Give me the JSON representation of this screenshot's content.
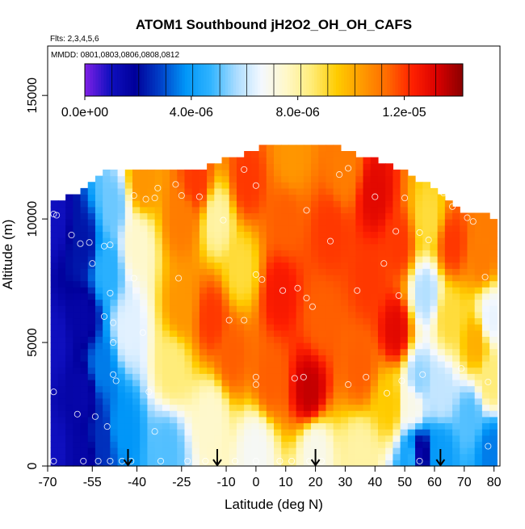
{
  "chart_data": {
    "type": "heatmap",
    "title": "ATOM1 Southbound jH2O2_OH_OH_CAFS",
    "flights_label": "Flts: 2,3,4,5,6",
    "dates_label": "MMDD: 0801,0803,0806,0808,0812",
    "xlabel": "Latitude (deg N)",
    "ylabel": "Altitude (m)",
    "xlim": [
      -70,
      82
    ],
    "ylim": [
      0,
      17000
    ],
    "x_ticks": [
      -70,
      -55,
      -40,
      -25,
      -10,
      0,
      10,
      20,
      30,
      40,
      50,
      60,
      70,
      80
    ],
    "y_ticks": [
      0,
      5000,
      10000,
      15000
    ],
    "colorbar": {
      "min": 0,
      "max": 1.42e-05,
      "tick_values": [
        0,
        4e-06,
        8e-06,
        1.2e-05
      ],
      "tick_labels": [
        "0.0e+00",
        "4.0e-06",
        "8.0e-06",
        "1.2e-05"
      ],
      "colors": [
        "#8020e6",
        "#1010c0",
        "#00009a",
        "#0040c8",
        "#0096f8",
        "#30b4ff",
        "#aadcff",
        "#f4f8ff",
        "#fff8c8",
        "#ffec78",
        "#ffcc00",
        "#ff9a00",
        "#ff6a00",
        "#ff2000",
        "#d80000",
        "#8a0000"
      ]
    },
    "arrows_latitude": [
      -43,
      -13,
      20,
      62
    ],
    "column_ceilings": [
      {
        "lat": -68,
        "alt": 10500
      },
      {
        "lat": -60,
        "alt": 11000
      },
      {
        "lat": -50,
        "alt": 11900
      },
      {
        "lat": -35,
        "alt": 11900
      },
      {
        "lat": -20,
        "alt": 11900
      },
      {
        "lat": -5,
        "alt": 12500
      },
      {
        "lat": 5,
        "alt": 13000
      },
      {
        "lat": 15,
        "alt": 13000
      },
      {
        "lat": 26,
        "alt": 13000
      },
      {
        "lat": 30,
        "alt": 12600
      },
      {
        "lat": 40,
        "alt": 12300
      },
      {
        "lat": 50,
        "alt": 11800
      },
      {
        "lat": 58,
        "alt": 11200
      },
      {
        "lat": 65,
        "alt": 10600
      },
      {
        "lat": 70,
        "alt": 10200
      },
      {
        "lat": 78,
        "alt": 10000
      }
    ],
    "field_anchors": [
      {
        "lat": -68,
        "alt": 500,
        "value": 1e-06
      },
      {
        "lat": -68,
        "alt": 5000,
        "value": 1e-06
      },
      {
        "lat": -68,
        "alt": 10000,
        "value": 1e-06
      },
      {
        "lat": -58,
        "alt": 500,
        "value": 1.6e-06
      },
      {
        "lat": -58,
        "alt": 3000,
        "value": 1.5e-06
      },
      {
        "lat": -58,
        "alt": 6000,
        "value": 1.6e-06
      },
      {
        "lat": -58,
        "alt": 9000,
        "value": 2.2e-06
      },
      {
        "lat": -52,
        "alt": 1000,
        "value": 2.6e-06
      },
      {
        "lat": -52,
        "alt": 4000,
        "value": 3.5e-06
      },
      {
        "lat": -50,
        "alt": 8000,
        "value": 4.6e-06
      },
      {
        "lat": -48,
        "alt": 10500,
        "value": 5.2e-06
      },
      {
        "lat": -45,
        "alt": 1500,
        "value": 3.8e-06
      },
      {
        "lat": -43,
        "alt": 5500,
        "value": 6.4e-06
      },
      {
        "lat": -40,
        "alt": 9000,
        "value": 7.5e-06
      },
      {
        "lat": -38,
        "alt": 11500,
        "value": 1.05e-05
      },
      {
        "lat": -30,
        "alt": 700,
        "value": 5e-06
      },
      {
        "lat": -28,
        "alt": 4000,
        "value": 8.5e-06
      },
      {
        "lat": -25,
        "alt": 6500,
        "value": 1.05e-05
      },
      {
        "lat": -25,
        "alt": 10000,
        "value": 1.1e-05
      },
      {
        "lat": -20,
        "alt": 11500,
        "value": 1.2e-05
      },
      {
        "lat": -15,
        "alt": 2000,
        "value": 7.5e-06
      },
      {
        "lat": -15,
        "alt": 6000,
        "value": 1.2e-05
      },
      {
        "lat": -13,
        "alt": 10000,
        "value": 8e-06
      },
      {
        "lat": -8,
        "alt": 4500,
        "value": 1.15e-05
      },
      {
        "lat": -5,
        "alt": 8000,
        "value": 9e-06
      },
      {
        "lat": -3,
        "alt": 11500,
        "value": 1.2e-05
      },
      {
        "lat": 0,
        "alt": 700,
        "value": 6.8e-06
      },
      {
        "lat": 5,
        "alt": 3500,
        "value": 1.15e-05
      },
      {
        "lat": 8,
        "alt": 7000,
        "value": 1.25e-05
      },
      {
        "lat": 10,
        "alt": 10000,
        "value": 1.15e-05
      },
      {
        "lat": 12,
        "alt": 12500,
        "value": 1.05e-05
      },
      {
        "lat": 18,
        "alt": 3000,
        "value": 1.35e-05
      },
      {
        "lat": 20,
        "alt": 700,
        "value": 7e-06
      },
      {
        "lat": 22,
        "alt": 6000,
        "value": 1.15e-05
      },
      {
        "lat": 25,
        "alt": 9500,
        "value": 1.2e-05
      },
      {
        "lat": 30,
        "alt": 12000,
        "value": 1.1e-05
      },
      {
        "lat": 35,
        "alt": 500,
        "value": 8e-06
      },
      {
        "lat": 35,
        "alt": 4000,
        "value": 1.15e-05
      },
      {
        "lat": 38,
        "alt": 7500,
        "value": 1.2e-05
      },
      {
        "lat": 40,
        "alt": 11000,
        "value": 1.3e-05
      },
      {
        "lat": 45,
        "alt": 2500,
        "value": 9.5e-06
      },
      {
        "lat": 47,
        "alt": 5500,
        "value": 1.3e-05
      },
      {
        "lat": 48,
        "alt": 9000,
        "value": 1.2e-05
      },
      {
        "lat": 53,
        "alt": 300,
        "value": 4.5e-06
      },
      {
        "lat": 53,
        "alt": 2500,
        "value": 7e-06
      },
      {
        "lat": 55,
        "alt": 500,
        "value": 1.5e-06
      },
      {
        "lat": 55,
        "alt": 3500,
        "value": 5.5e-06
      },
      {
        "lat": 57,
        "alt": 7000,
        "value": 5.8e-06
      },
      {
        "lat": 58,
        "alt": 10000,
        "value": 9e-06
      },
      {
        "lat": 62,
        "alt": 500,
        "value": 4e-06
      },
      {
        "lat": 62,
        "alt": 3000,
        "value": 6e-06
      },
      {
        "lat": 65,
        "alt": 6000,
        "value": 9e-06
      },
      {
        "lat": 66,
        "alt": 9000,
        "value": 1.2e-05
      },
      {
        "lat": 72,
        "alt": 2000,
        "value": 5e-06
      },
      {
        "lat": 74,
        "alt": 5000,
        "value": 1e-05
      },
      {
        "lat": 76,
        "alt": 8500,
        "value": 1.1e-05
      },
      {
        "lat": 79,
        "alt": 700,
        "value": 3.5e-06
      },
      {
        "lat": 79,
        "alt": 3500,
        "value": 8.5e-06
      },
      {
        "lat": 79,
        "alt": 6000,
        "value": 6.5e-06
      },
      {
        "lat": 79,
        "alt": 9500,
        "value": 1.1e-05
      }
    ],
    "sample_points": [
      {
        "lat": -68,
        "alt": 10200
      },
      {
        "lat": -67,
        "alt": 10150
      },
      {
        "lat": -68,
        "alt": 3000
      },
      {
        "lat": -68,
        "alt": 200
      },
      {
        "lat": -62,
        "alt": 9350
      },
      {
        "lat": -59,
        "alt": 9000
      },
      {
        "lat": -60,
        "alt": 2100
      },
      {
        "lat": -58,
        "alt": 200
      },
      {
        "lat": -56,
        "alt": 9050
      },
      {
        "lat": -55,
        "alt": 8200
      },
      {
        "lat": -54,
        "alt": 2000
      },
      {
        "lat": -53,
        "alt": 200
      },
      {
        "lat": -51,
        "alt": 8900
      },
      {
        "lat": -49,
        "alt": 8950
      },
      {
        "lat": -51,
        "alt": 6050
      },
      {
        "lat": -48,
        "alt": 5800
      },
      {
        "lat": -48,
        "alt": 5000
      },
      {
        "lat": -48,
        "alt": 3700
      },
      {
        "lat": -47,
        "alt": 3450
      },
      {
        "lat": -49,
        "alt": 7000
      },
      {
        "lat": -50,
        "alt": 1600
      },
      {
        "lat": -49,
        "alt": 200
      },
      {
        "lat": -45,
        "alt": 200
      },
      {
        "lat": -42,
        "alt": 200
      },
      {
        "lat": -41,
        "alt": 10950
      },
      {
        "lat": -37,
        "alt": 10800
      },
      {
        "lat": -34,
        "alt": 10850
      },
      {
        "lat": -33,
        "alt": 11250
      },
      {
        "lat": -41,
        "alt": 7600
      },
      {
        "lat": -38,
        "alt": 5400
      },
      {
        "lat": -36,
        "alt": 3000
      },
      {
        "lat": -34,
        "alt": 1400
      },
      {
        "lat": -32,
        "alt": 200
      },
      {
        "lat": -27,
        "alt": 11400
      },
      {
        "lat": -25,
        "alt": 10950
      },
      {
        "lat": -26,
        "alt": 7600
      },
      {
        "lat": -23,
        "alt": 200
      },
      {
        "lat": -19,
        "alt": 10900
      },
      {
        "lat": -17,
        "alt": 200
      },
      {
        "lat": -11,
        "alt": 9950
      },
      {
        "lat": -9,
        "alt": 5900
      },
      {
        "lat": -7,
        "alt": 200
      },
      {
        "lat": -4,
        "alt": 12000
      },
      {
        "lat": -4,
        "alt": 5900
      },
      {
        "lat": 0,
        "alt": 11350
      },
      {
        "lat": 0,
        "alt": 7750
      },
      {
        "lat": 2,
        "alt": 7550
      },
      {
        "lat": 0,
        "alt": 3600
      },
      {
        "lat": 0,
        "alt": 3300
      },
      {
        "lat": 0,
        "alt": 200
      },
      {
        "lat": 8,
        "alt": 200
      },
      {
        "lat": 12,
        "alt": 200
      },
      {
        "lat": 9,
        "alt": 7100
      },
      {
        "lat": 13,
        "alt": 3550
      },
      {
        "lat": 16,
        "alt": 3600
      },
      {
        "lat": 17,
        "alt": 6800
      },
      {
        "lat": 19,
        "alt": 6450
      },
      {
        "lat": 17,
        "alt": 10350
      },
      {
        "lat": 14,
        "alt": 7200
      },
      {
        "lat": 18,
        "alt": 200
      },
      {
        "lat": 22,
        "alt": 200
      },
      {
        "lat": 25,
        "alt": 9100
      },
      {
        "lat": 28,
        "alt": 11800
      },
      {
        "lat": 31,
        "alt": 12050
      },
      {
        "lat": 31,
        "alt": 3300
      },
      {
        "lat": 34,
        "alt": 7100
      },
      {
        "lat": 37,
        "alt": 3600
      },
      {
        "lat": 40,
        "alt": 10900
      },
      {
        "lat": 43,
        "alt": 8200
      },
      {
        "lat": 44,
        "alt": 2950
      },
      {
        "lat": 47,
        "alt": 9500
      },
      {
        "lat": 49,
        "alt": 3450
      },
      {
        "lat": 50,
        "alt": 10850
      },
      {
        "lat": 48,
        "alt": 6900
      },
      {
        "lat": 55,
        "alt": 9450
      },
      {
        "lat": 58,
        "alt": 9150
      },
      {
        "lat": 56,
        "alt": 3700
      },
      {
        "lat": 55,
        "alt": 200
      },
      {
        "lat": 59,
        "alt": 12000
      },
      {
        "lat": 63,
        "alt": 11050
      },
      {
        "lat": 66,
        "alt": 10500
      },
      {
        "lat": 71,
        "alt": 10050
      },
      {
        "lat": 69,
        "alt": 3950
      },
      {
        "lat": 73,
        "alt": 9900
      },
      {
        "lat": 77,
        "alt": 7650
      },
      {
        "lat": 78,
        "alt": 3400
      },
      {
        "lat": 78,
        "alt": 800
      },
      {
        "lat": 73,
        "alt": 10500
      }
    ]
  }
}
